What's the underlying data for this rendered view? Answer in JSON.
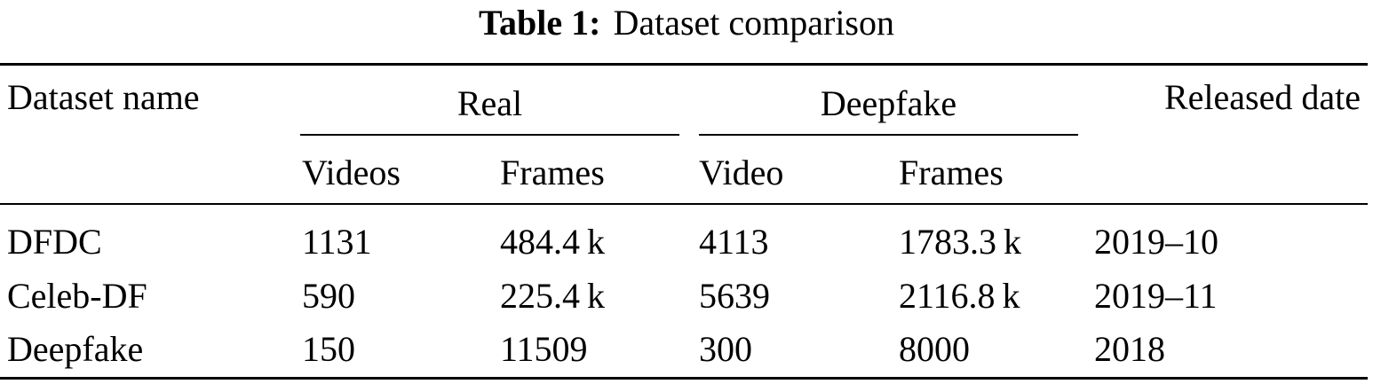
{
  "caption": {
    "label": "Table 1:",
    "text": "Dataset comparison"
  },
  "header": {
    "dataset_name": "Dataset name",
    "real": "Real",
    "deepfake": "Deepfake",
    "released_date": "Released date",
    "sub": [
      "Videos",
      "Frames",
      "Video",
      "Frames"
    ]
  },
  "rows": [
    [
      "DFDC",
      "1131",
      "484.4 k",
      "4113",
      "1783.3 k",
      "2019–10"
    ],
    [
      "Celeb-DF",
      "590",
      "225.4 k",
      "5639",
      "2116.8 k",
      "2019–11"
    ],
    [
      "Deepfake",
      "150",
      "11509",
      "300",
      "8000",
      "2018"
    ]
  ]
}
